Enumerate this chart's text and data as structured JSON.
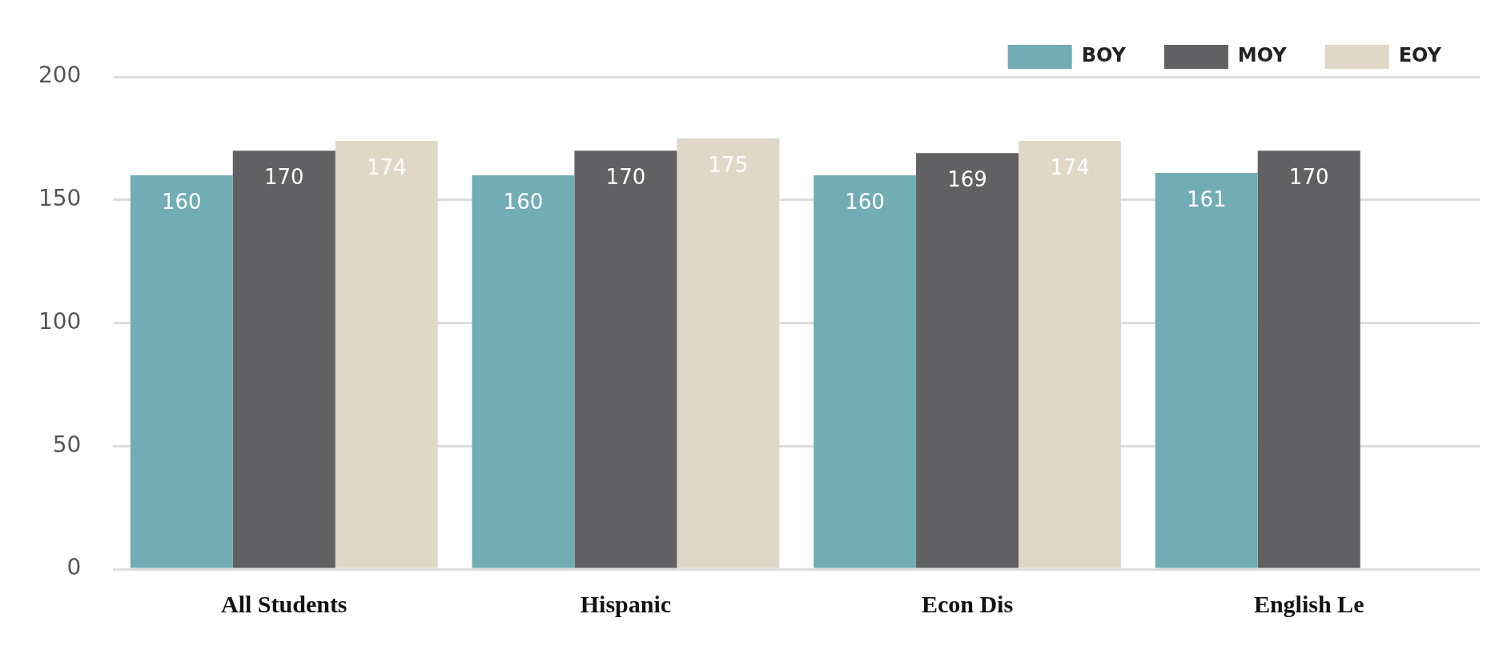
{
  "chart_data": {
    "type": "bar",
    "categories": [
      "All Students",
      "Hispanic",
      "Econ Dis",
      "English Le"
    ],
    "series": [
      {
        "name": "BOY",
        "color": "#72adb5",
        "values": [
          160,
          160,
          160,
          161
        ]
      },
      {
        "name": "MOY",
        "color": "#616063",
        "values": [
          170,
          170,
          169,
          170
        ]
      },
      {
        "name": "EOY",
        "color": "#e0d7c6",
        "values": [
          174,
          175,
          174,
          null
        ]
      }
    ],
    "ylim": [
      0,
      200
    ],
    "yticks": [
      0,
      50,
      100,
      150,
      200
    ],
    "grid": "y",
    "legend": "top right",
    "data_labels": true
  }
}
